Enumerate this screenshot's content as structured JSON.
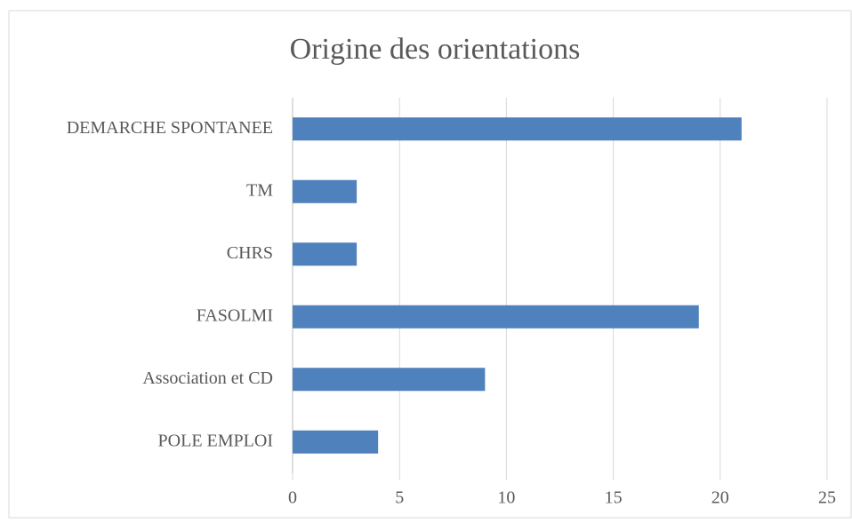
{
  "chart_data": {
    "type": "bar",
    "orientation": "horizontal",
    "title": "Origine des orientations",
    "categories": [
      "DEMARCHE SPONTANEE",
      "TM",
      "CHRS",
      "FASOLMI",
      "Association et CD",
      "POLE EMPLOI"
    ],
    "values": [
      21,
      3,
      3,
      19,
      9,
      4
    ],
    "color": "#4f81bd",
    "xlim": [
      0,
      25
    ],
    "xticks": [
      0,
      5,
      10,
      15,
      20,
      25
    ],
    "grid": true
  }
}
